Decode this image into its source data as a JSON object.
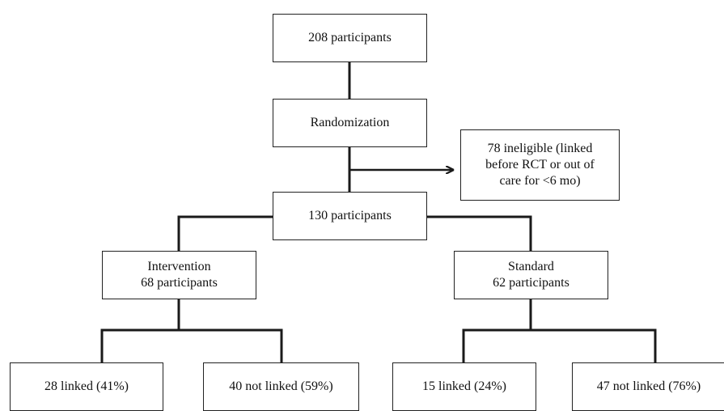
{
  "diagram": {
    "top": {
      "label": "208 participants"
    },
    "randomization": {
      "label": "Randomization"
    },
    "excluded": {
      "lines": [
        "78 ineligible (linked",
        "before RCT or out of",
        "care for <6 mo)"
      ]
    },
    "eligible": {
      "label": "130 participants"
    },
    "intervention": {
      "lines": [
        "Intervention",
        "68 participants"
      ],
      "outcomes": {
        "linked": "28 linked (41%)",
        "not_linked": "40 not linked (59%)"
      }
    },
    "standard": {
      "lines": [
        "Standard",
        "62 participants"
      ],
      "outcomes": {
        "linked": "15 linked (24%)",
        "not_linked": "47 not linked (76%)"
      }
    }
  }
}
